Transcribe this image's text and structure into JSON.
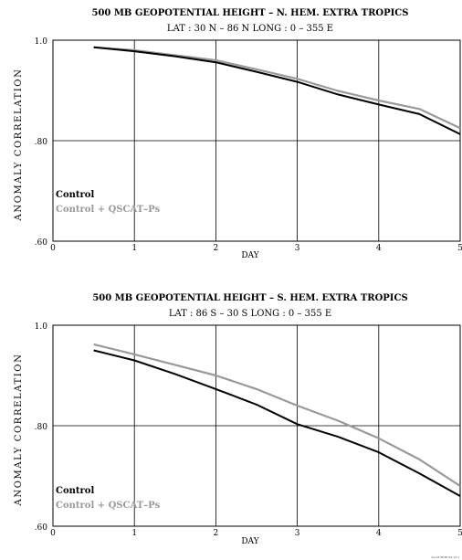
{
  "colors": {
    "control": "#000000",
    "qscat": "#999999",
    "grid": "#000000"
  },
  "chart_data": [
    {
      "type": "line",
      "title": "500 MB  GEOPOTENTIAL  HEIGHT  – N. HEM.  EXTRA TROPICS",
      "subtitle": "LAT :  30 N  –  86 N       LONG :  0  –  355 E",
      "xlabel": "DAY",
      "ylabel": "ANOMALY  CORRELATION",
      "xlim": [
        0,
        5
      ],
      "ylim": [
        0.6,
        1.0
      ],
      "x_ticks": [
        "0",
        "1",
        "2",
        "3",
        "4",
        "5"
      ],
      "y_ticks": [
        ".60",
        ".80",
        "1.0"
      ],
      "x": [
        0.5,
        1.0,
        1.5,
        2.0,
        2.5,
        3.0,
        3.5,
        4.0,
        4.5,
        5.0
      ],
      "series": [
        {
          "name": "Control",
          "values": [
            0.986,
            0.978,
            0.968,
            0.956,
            0.937,
            0.917,
            0.892,
            0.872,
            0.853,
            0.813
          ]
        },
        {
          "name": "Control + QSCAT–Ps",
          "values": [
            0.986,
            0.98,
            0.97,
            0.96,
            0.942,
            0.923,
            0.899,
            0.88,
            0.863,
            0.825
          ]
        }
      ],
      "grid": true,
      "legend_placement": "bottom-left"
    },
    {
      "type": "line",
      "title": "500 MB  GEOPOTENTIAL  HEIGHT  – S. HEM.  EXTRA TROPICS",
      "subtitle": "LAT :  86 S  –  30 S       LONG :  0  –  355 E",
      "xlabel": "DAY",
      "ylabel": "ANOMALY  CORRELATION",
      "xlim": [
        0,
        5
      ],
      "ylim": [
        0.6,
        1.0
      ],
      "x_ticks": [
        "0",
        "1",
        "2",
        "3",
        "4",
        "5"
      ],
      "y_ticks": [
        ".60",
        ".80",
        "1.0"
      ],
      "x": [
        0.5,
        1.0,
        1.5,
        2.0,
        2.5,
        3.0,
        3.5,
        4.0,
        4.5,
        5.0
      ],
      "series": [
        {
          "name": "Control",
          "values": [
            0.95,
            0.93,
            0.903,
            0.873,
            0.842,
            0.803,
            0.778,
            0.747,
            0.705,
            0.66
          ]
        },
        {
          "name": "Control + QSCAT–Ps",
          "values": [
            0.962,
            0.942,
            0.921,
            0.9,
            0.873,
            0.84,
            0.81,
            0.775,
            0.733,
            0.68
          ]
        }
      ],
      "grid": true,
      "legend_placement": "bottom-left"
    }
  ],
  "footer_text": "Sacc8 NCEP 09-13-1"
}
